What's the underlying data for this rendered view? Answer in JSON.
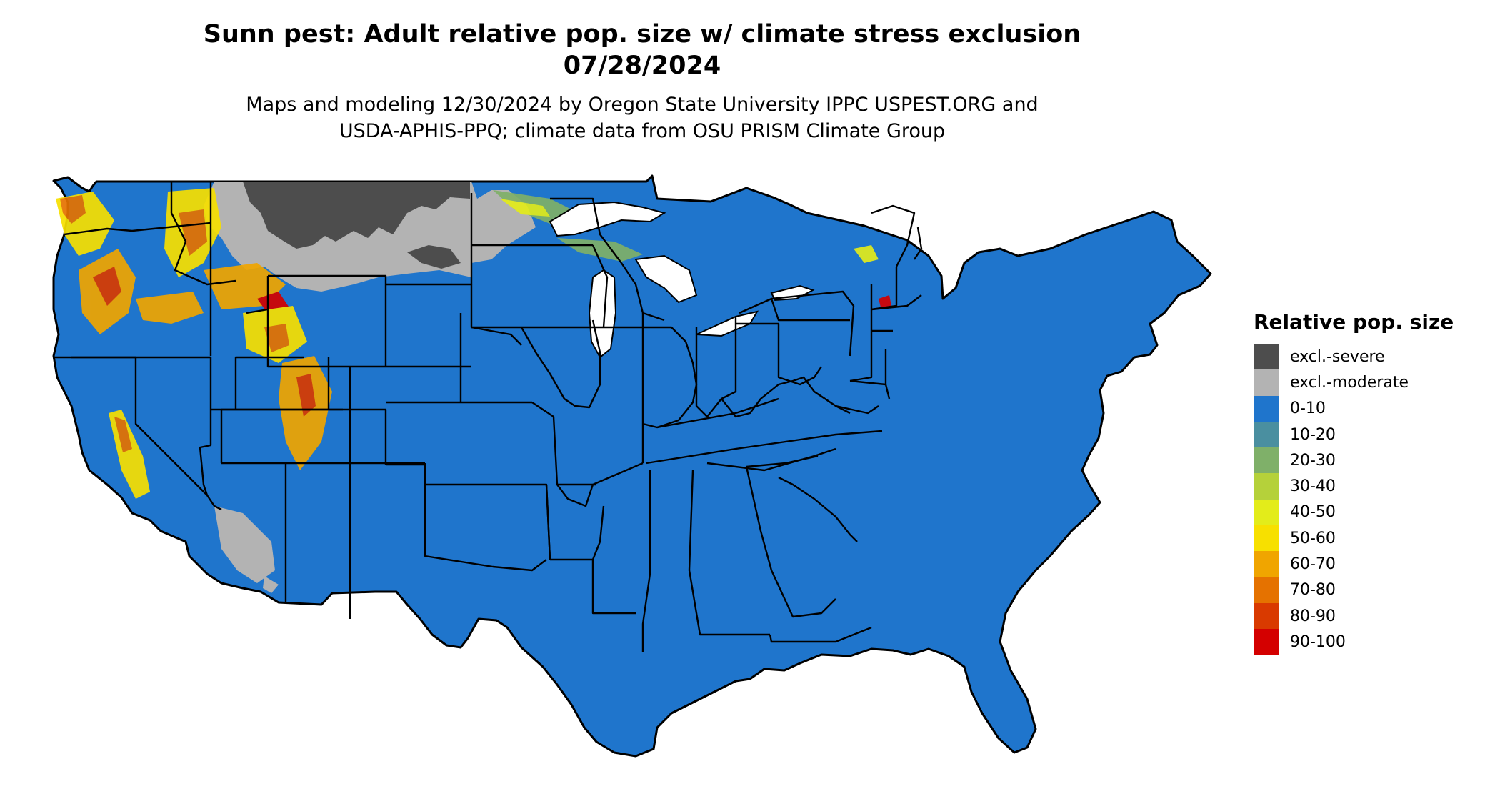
{
  "title_line1": "Sunn pest: Adult relative pop. size w/ climate stress exclusion",
  "title_line2": "07/28/2024",
  "subtitle_line1": "Maps and modeling 12/30/2024 by Oregon State University IPPC USPEST.ORG and",
  "subtitle_line2": "USDA-APHIS-PPQ; climate data from OSU PRISM Climate Group",
  "legend": {
    "title": "Relative pop. size",
    "items": [
      {
        "label": "excl.-severe",
        "color": "#4d4d4d"
      },
      {
        "label": "excl.-moderate",
        "color": "#b3b3b3"
      },
      {
        "label": "0-10",
        "color": "#1f75cc"
      },
      {
        "label": "10-20",
        "color": "#4a8fa0"
      },
      {
        "label": "20-30",
        "color": "#7fb069"
      },
      {
        "label": "30-40",
        "color": "#b5d13a"
      },
      {
        "label": "40-50",
        "color": "#e3ec1a"
      },
      {
        "label": "50-60",
        "color": "#f7e000"
      },
      {
        "label": "60-70",
        "color": "#f0a500"
      },
      {
        "label": "70-80",
        "color": "#e57200"
      },
      {
        "label": "80-90",
        "color": "#d93a00"
      },
      {
        "label": "90-100",
        "color": "#d40000"
      }
    ]
  }
}
